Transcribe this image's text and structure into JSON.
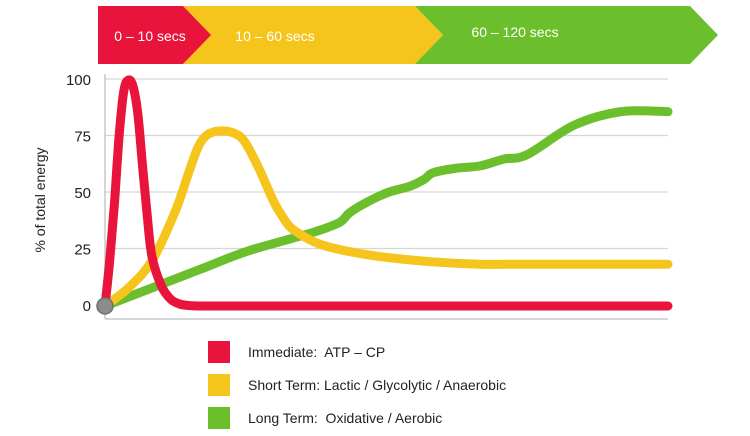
{
  "chart_data": {
    "type": "line",
    "title": "",
    "xlabel": "",
    "ylabel": "% of total energy",
    "ylim": [
      0,
      100
    ],
    "y_ticks": [
      "0",
      "25",
      "50",
      "75",
      "100"
    ],
    "grid": "horizontal",
    "legend_position": "bottom",
    "phases": [
      {
        "label": "0 – 10 secs",
        "color": "#e8143c"
      },
      {
        "label": "10  – 60 secs",
        "color": "#f5c51e"
      },
      {
        "label": "60  – 120 secs",
        "color": "#6cbf2c"
      }
    ],
    "series": [
      {
        "name": "Immediate:  ATP – CP",
        "color": "#e8143c",
        "x": [
          0,
          1,
          2,
          3,
          4,
          5,
          6,
          7,
          8,
          9,
          10,
          12,
          14,
          16,
          18,
          20,
          25,
          40,
          120
        ],
        "values": [
          0,
          20,
          45,
          75,
          95,
          100,
          97,
          85,
          62,
          40,
          22,
          9,
          3,
          0.8,
          0.2,
          0,
          0,
          0,
          0
        ]
      },
      {
        "name": "Short Term: Lactic / Glycolytic / Anaerobic",
        "color": "#f5c51e",
        "x": [
          0,
          5,
          10,
          15,
          18,
          20,
          22,
          25,
          28,
          30,
          33,
          36,
          38,
          40,
          45,
          50,
          55,
          60,
          70,
          80,
          90,
          100,
          110,
          120
        ],
        "values": [
          0,
          8,
          20,
          42,
          60,
          71,
          76,
          77.5,
          76,
          72,
          60,
          46,
          39,
          34,
          28,
          25,
          23,
          21.5,
          19.5,
          18.5,
          18.5,
          18.5,
          18.5,
          18.5
        ]
      },
      {
        "name": "Long Term:  Oxidative / Aerobic",
        "color": "#6cbf2c",
        "x": [
          0,
          10,
          20,
          30,
          40,
          45,
          50,
          52,
          55,
          60,
          65,
          68,
          70,
          75,
          80,
          85,
          90,
          100,
          110,
          120
        ],
        "values": [
          0,
          8,
          16,
          24,
          30,
          33,
          37,
          41,
          45,
          50,
          53,
          56,
          59,
          61,
          62,
          65,
          67,
          80,
          86,
          86
        ]
      }
    ]
  }
}
